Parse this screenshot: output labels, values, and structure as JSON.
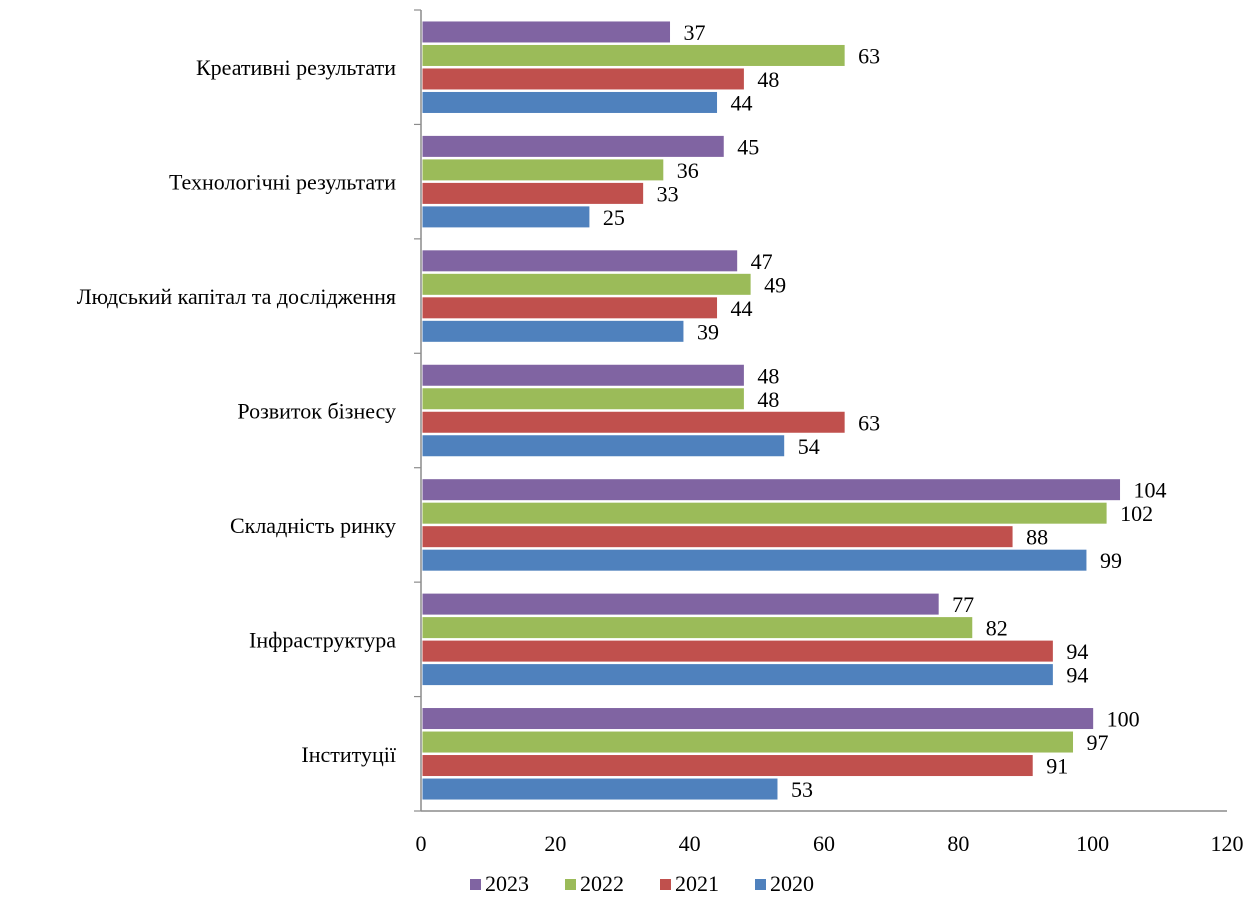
{
  "chart_data": {
    "type": "bar",
    "orientation": "horizontal",
    "categories": [
      "Інституції",
      "Інфраструктура",
      "Складність ринку",
      "Розвиток бізнесу",
      "Людський капітал та дослідження",
      "Технологічні результати",
      "Креативні результати"
    ],
    "series": [
      {
        "name": "2023",
        "color": "#8064A2",
        "values": [
          100,
          77,
          104,
          48,
          47,
          45,
          37
        ]
      },
      {
        "name": "2022",
        "color": "#9BBB59",
        "values": [
          97,
          82,
          102,
          48,
          49,
          36,
          63
        ]
      },
      {
        "name": "2021",
        "color": "#C0504D",
        "values": [
          91,
          94,
          88,
          63,
          44,
          33,
          48
        ]
      },
      {
        "name": "2020",
        "color": "#4F81BD",
        "values": [
          53,
          94,
          99,
          54,
          39,
          25,
          44
        ]
      }
    ],
    "xlim": [
      0,
      120
    ],
    "x_ticks": [
      "0",
      "20",
      "40",
      "60",
      "80",
      "100",
      "120"
    ],
    "title": "",
    "xlabel": "",
    "ylabel": "",
    "grid": false,
    "legend_position": "bottom",
    "data_labels": true
  }
}
